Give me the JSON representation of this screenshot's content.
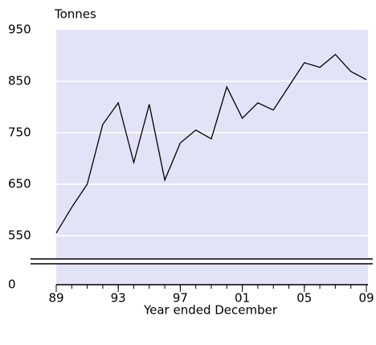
{
  "chart_data": {
    "type": "line",
    "y_axis_label": "Tonnes",
    "x_axis_label": "Year ended December",
    "x": [
      1989,
      1990,
      1991,
      1992,
      1993,
      1994,
      1995,
      1996,
      1997,
      1998,
      1999,
      2000,
      2001,
      2002,
      2003,
      2004,
      2005,
      2006,
      2007,
      2008,
      2009
    ],
    "series": [
      {
        "color": "#000000",
        "values": [
          555,
          605,
          650,
          766,
          808,
          692,
          805,
          658,
          730,
          755,
          738,
          839,
          778,
          808,
          794,
          840,
          886,
          877,
          902,
          869,
          853
        ]
      }
    ],
    "xlim": [
      1989,
      2009
    ],
    "xticks": [
      {
        "value": 1989,
        "label": "89"
      },
      {
        "value": 1993,
        "label": "93"
      },
      {
        "value": 1997,
        "label": "97"
      },
      {
        "value": 2001,
        "label": "01"
      },
      {
        "value": 2005,
        "label": "05"
      },
      {
        "value": 2009,
        "label": "09"
      }
    ],
    "ylim": [
      0,
      950
    ],
    "yticks": [
      0,
      550,
      650,
      750,
      850,
      950
    ],
    "axis_break": [
      0,
      500
    ],
    "grid": true,
    "background": "#e3e3f8"
  }
}
